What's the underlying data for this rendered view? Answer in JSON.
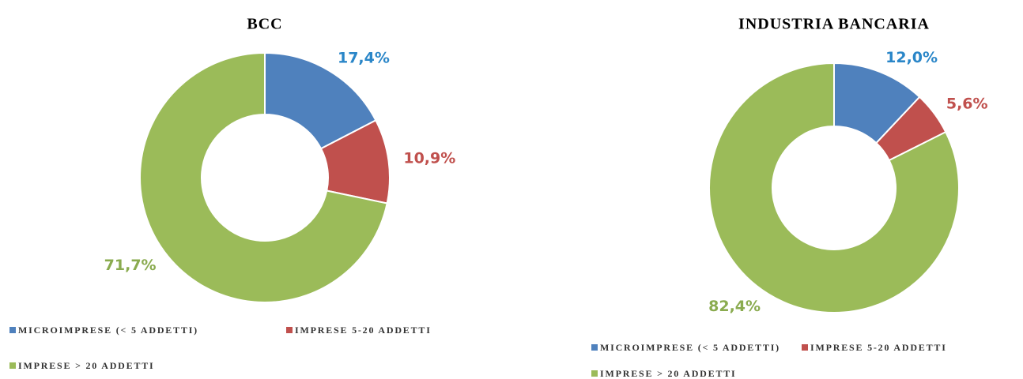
{
  "chart_data": [
    {
      "type": "donut",
      "title": "BCC",
      "categories": [
        "MICROIMPRESE (< 5 ADDETTI)",
        "IMPRESE 5-20 ADDETTI",
        "IMPRESE > 20 ADDETTI"
      ],
      "values": [
        17.4,
        10.9,
        71.7
      ],
      "value_labels": [
        "17,4%",
        "10,9%",
        "71,7%"
      ],
      "colors": [
        "#4f81bd",
        "#c0504d",
        "#9bbb59"
      ],
      "label_colors": [
        "#2a86c8",
        "#c0504d",
        "#8aab4f"
      ]
    },
    {
      "type": "donut",
      "title": "INDUSTRIA BANCARIA",
      "categories": [
        "MICROIMPRESE (< 5 ADDETTI)",
        "IMPRESE 5-20 ADDETTI",
        "IMPRESE > 20 ADDETTI"
      ],
      "values": [
        12.0,
        5.6,
        82.4
      ],
      "value_labels": [
        "12,0%",
        "5,6%",
        "82,4%"
      ],
      "colors": [
        "#4f81bd",
        "#c0504d",
        "#9bbb59"
      ],
      "label_colors": [
        "#2a86c8",
        "#c0504d",
        "#8aab4f"
      ]
    }
  ]
}
